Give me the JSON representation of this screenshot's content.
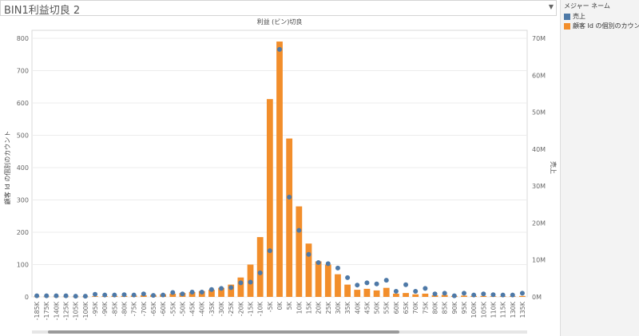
{
  "title": {
    "text": "BIN1利益切良 2",
    "dropdown_icon": "caret-down-icon"
  },
  "legend": {
    "header": "メジャー ネーム",
    "items": [
      {
        "label": "売上",
        "color": "#4e79a7"
      },
      {
        "label": "顧客 Id の個別のカウント",
        "color": "#f28e2b"
      }
    ]
  },
  "chart_data": {
    "type": "bar",
    "title": "利益 (ビン)切良",
    "ylabel_left": "顧客 Id の個別のカウント",
    "ylabel_right": "売上",
    "ylim_left": [
      0,
      800
    ],
    "ylim_right": [
      0,
      70000000
    ],
    "yticks_left": [
      "0",
      "100",
      "200",
      "300",
      "400",
      "500",
      "600",
      "700",
      "800"
    ],
    "yticks_right": [
      "0M",
      "10M",
      "20M",
      "30M",
      "40M",
      "50M",
      "60M",
      "70M"
    ],
    "grid": true,
    "legend_position": "right",
    "categories": [
      "-185K",
      "-175K",
      "-140K",
      "-125K",
      "-105K",
      "-100K",
      "-95K",
      "-90K",
      "-85K",
      "-80K",
      "-75K",
      "-70K",
      "-65K",
      "-60K",
      "-55K",
      "-50K",
      "-45K",
      "-40K",
      "-35K",
      "-30K",
      "-25K",
      "-20K",
      "-15K",
      "-10K",
      "-5K",
      "0K",
      "5K",
      "10K",
      "15K",
      "20K",
      "25K",
      "30K",
      "35K",
      "40K",
      "45K",
      "50K",
      "55K",
      "60K",
      "65K",
      "70K",
      "75K",
      "80K",
      "85K",
      "90K",
      "95K",
      "100K",
      "105K",
      "110K",
      "115K",
      "130K",
      "135K"
    ],
    "series": [
      {
        "name": "顧客 Id の個別のカウント",
        "kind": "bar",
        "values": [
          1,
          1,
          1,
          1,
          1,
          1,
          2,
          2,
          3,
          3,
          4,
          5,
          6,
          8,
          10,
          12,
          15,
          18,
          22,
          28,
          38,
          60,
          100,
          185,
          612,
          790,
          490,
          280,
          165,
          110,
          100,
          70,
          38,
          22,
          25,
          20,
          28,
          10,
          12,
          8,
          10,
          5,
          6,
          3,
          4,
          3,
          3,
          2,
          2,
          2,
          3
        ]
      },
      {
        "name": "売上",
        "kind": "scatter",
        "values": [
          0.3,
          0.3,
          0.3,
          0.3,
          0.2,
          0.2,
          0.7,
          0.5,
          0.5,
          0.6,
          0.5,
          0.8,
          0.4,
          0.5,
          1.2,
          0.8,
          1.3,
          1.3,
          2.0,
          2.3,
          2.5,
          3.8,
          4.0,
          6.5,
          12.5,
          67,
          27,
          18,
          11.5,
          9.3,
          9.0,
          7.8,
          5.2,
          3.2,
          3.8,
          3.5,
          4.5,
          1.5,
          3.3,
          1.5,
          2.3,
          0.8,
          1.0,
          0.3,
          1.0,
          0.5,
          0.8,
          0.6,
          0.5,
          0.5,
          1.0
        ]
      }
    ]
  }
}
